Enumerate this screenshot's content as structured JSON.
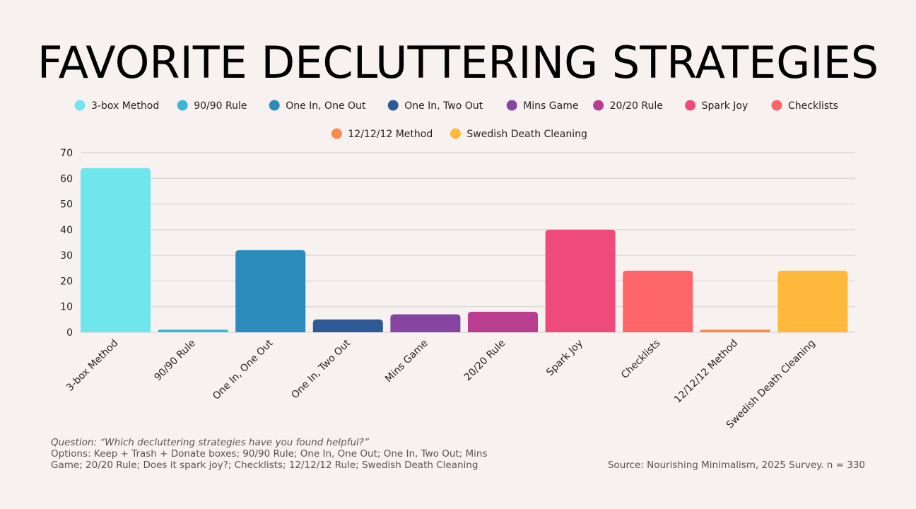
{
  "chart_data": {
    "type": "bar",
    "title": "FAVORITE DECLUTTERING STRATEGIES",
    "categories": [
      "3-box Method",
      "90/90 Rule",
      "One In, One Out",
      "One In, Two Out",
      "Mins Game",
      "20/20 Rule",
      "Spark Joy",
      "Checklists",
      "12/12/12 Method",
      "Swedish Death Cleaning"
    ],
    "values": [
      64,
      1,
      32,
      5,
      7,
      8,
      40,
      24,
      1,
      24
    ],
    "colors": [
      "#6ee6ec",
      "#3fb5d6",
      "#2b8bbb",
      "#2e5b97",
      "#8645a0",
      "#b93e8f",
      "#ef4a7c",
      "#fe6568",
      "#fb8a4b",
      "#feb83c"
    ],
    "ylim": [
      0,
      70
    ],
    "yticks": [
      0,
      10,
      20,
      30,
      40,
      50,
      60,
      70
    ],
    "grid": true,
    "legend_position": "top"
  },
  "footnote": {
    "question": "Question: “Which decluttering strategies have you found helpful?”",
    "options": "Options: Keep + Trash + Donate boxes; 90/90 Rule; One In, One Out; One In, Two Out; Mins Game; 20/20 Rule; Does it spark joy?; Checklists; 12/12/12 Rule; Swedish Death Cleaning"
  },
  "source": "Source: Nourishing Minimalism, 2025 Survey. n = 330"
}
